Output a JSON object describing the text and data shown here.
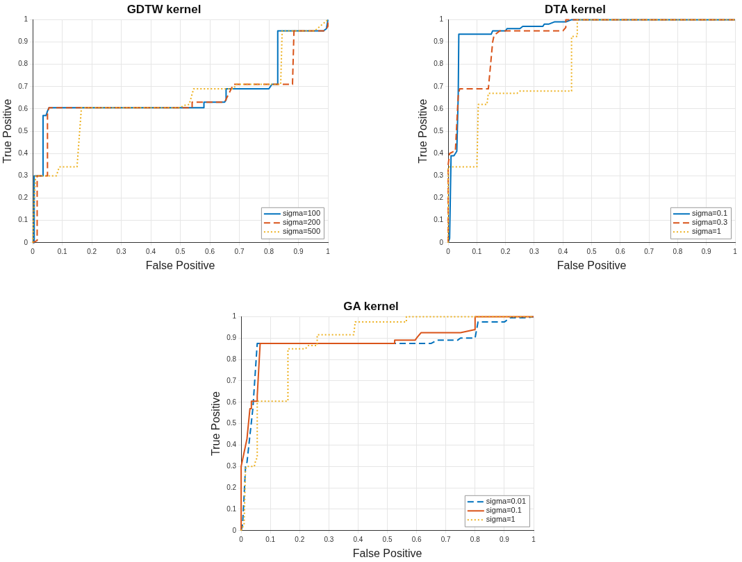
{
  "chart_data": [
    {
      "type": "line",
      "title": "GDTW kernel",
      "xlabel": "False Positive",
      "ylabel": "True Positive",
      "xlim": [
        0,
        1
      ],
      "ylim": [
        0,
        1
      ],
      "xticks": [
        0,
        0.1,
        0.2,
        0.3,
        0.4,
        0.5,
        0.6,
        0.7,
        0.8,
        0.9,
        1
      ],
      "yticks": [
        0,
        0.1,
        0.2,
        0.3,
        0.4,
        0.5,
        0.6,
        0.7,
        0.8,
        0.9,
        1
      ],
      "grid": true,
      "legend": "bottom right",
      "marker": "none",
      "series": [
        {
          "name": "sigma=100",
          "color": "#0072bd",
          "line_style": "solid",
          "x": [
            0,
            0.005,
            0.005,
            0.035,
            0.035,
            0.045,
            0.05,
            0.055,
            0.58,
            0.58,
            0.65,
            0.655,
            0.655,
            0.8,
            0.81,
            0.83,
            0.83,
            0.985,
            0.995,
            1
          ],
          "values": [
            0,
            0,
            0.3,
            0.3,
            0.57,
            0.57,
            0.59,
            0.605,
            0.605,
            0.63,
            0.63,
            0.64,
            0.69,
            0.69,
            0.71,
            0.71,
            0.95,
            0.95,
            0.96,
            1
          ]
        },
        {
          "name": "sigma=200",
          "color": "#d95319",
          "line_style": "dashed",
          "x": [
            0,
            0.015,
            0.015,
            0.05,
            0.05,
            0.055,
            0.54,
            0.54,
            0.65,
            0.68,
            0.88,
            0.885,
            0.99,
            1,
            1
          ],
          "values": [
            0,
            0.01,
            0.3,
            0.3,
            0.58,
            0.605,
            0.605,
            0.63,
            0.63,
            0.71,
            0.71,
            0.95,
            0.95,
            0.97,
            1
          ]
        },
        {
          "name": "sigma=500",
          "color": "#edb120",
          "line_style": "dotted",
          "x": [
            0,
            0.005,
            0.01,
            0.08,
            0.09,
            0.15,
            0.165,
            0.5,
            0.51,
            0.53,
            0.545,
            0.68,
            0.69,
            0.84,
            0.845,
            0.955,
            1
          ],
          "values": [
            0,
            0.2,
            0.3,
            0.3,
            0.34,
            0.34,
            0.605,
            0.605,
            0.615,
            0.62,
            0.69,
            0.69,
            0.71,
            0.71,
            0.95,
            0.95,
            1
          ]
        }
      ]
    },
    {
      "type": "line",
      "title": "DTA kernel",
      "xlabel": "False Positive",
      "ylabel": "True Positive",
      "xlim": [
        0,
        1
      ],
      "ylim": [
        0,
        1
      ],
      "xticks": [
        0,
        0.1,
        0.2,
        0.3,
        0.4,
        0.5,
        0.6,
        0.7,
        0.8,
        0.9,
        1
      ],
      "yticks": [
        0,
        0.1,
        0.2,
        0.3,
        0.4,
        0.5,
        0.6,
        0.7,
        0.8,
        0.9,
        1
      ],
      "grid": true,
      "legend": "bottom right",
      "marker": "none",
      "series": [
        {
          "name": "sigma=0.1",
          "color": "#0072bd",
          "line_style": "solid",
          "x": [
            0,
            0.005,
            0.01,
            0.02,
            0.025,
            0.03,
            0.035,
            0.037,
            0.15,
            0.155,
            0.2,
            0.205,
            0.25,
            0.26,
            0.33,
            0.335,
            0.35,
            0.37,
            0.41,
            0.43,
            1
          ],
          "values": [
            0,
            0.02,
            0.39,
            0.39,
            0.4,
            0.41,
            0.66,
            0.935,
            0.935,
            0.95,
            0.95,
            0.96,
            0.96,
            0.97,
            0.97,
            0.98,
            0.98,
            0.99,
            0.99,
            1,
            1
          ]
        },
        {
          "name": "sigma=0.3",
          "color": "#d95319",
          "line_style": "dashed",
          "x": [
            0,
            0,
            0.005,
            0.02,
            0.025,
            0.035,
            0.04,
            0.14,
            0.155,
            0.16,
            0.18,
            0.4,
            0.41,
            0.41,
            1
          ],
          "values": [
            0,
            0.35,
            0.4,
            0.41,
            0.41,
            0.66,
            0.69,
            0.69,
            0.9,
            0.93,
            0.95,
            0.95,
            0.965,
            1,
            1
          ]
        },
        {
          "name": "sigma=1",
          "color": "#edb120",
          "line_style": "dotted",
          "x": [
            0,
            0,
            0.1,
            0.105,
            0.135,
            0.14,
            0.24,
            0.25,
            0.43,
            0.43,
            0.45,
            0.45,
            1
          ],
          "values": [
            0,
            0.34,
            0.34,
            0.62,
            0.62,
            0.67,
            0.67,
            0.68,
            0.68,
            0.925,
            0.925,
            1,
            1
          ]
        }
      ]
    },
    {
      "type": "line",
      "title": "GA kernel",
      "xlabel": "False Positive",
      "ylabel": "True Positive",
      "xlim": [
        0,
        1
      ],
      "ylim": [
        0,
        1
      ],
      "xticks": [
        0,
        0.1,
        0.2,
        0.3,
        0.4,
        0.5,
        0.6,
        0.7,
        0.8,
        0.9,
        1
      ],
      "yticks": [
        0,
        0.1,
        0.2,
        0.3,
        0.4,
        0.5,
        0.6,
        0.7,
        0.8,
        0.9,
        1
      ],
      "grid": true,
      "legend": "bottom right",
      "marker": "none",
      "series": [
        {
          "name": "sigma=0.01",
          "color": "#0072bd",
          "line_style": "dashed",
          "x": [
            0,
            0.005,
            0.01,
            0.015,
            0.02,
            0.04,
            0.055,
            0.65,
            0.67,
            0.74,
            0.75,
            0.8,
            0.81,
            0.9,
            0.92,
            0.98,
            1
          ],
          "values": [
            0,
            0.03,
            0.16,
            0.3,
            0.32,
            0.57,
            0.875,
            0.875,
            0.89,
            0.89,
            0.9,
            0.9,
            0.975,
            0.975,
            0.995,
            0.995,
            1
          ]
        },
        {
          "name": "sigma=0.1",
          "color": "#d95319",
          "line_style": "solid",
          "x": [
            0,
            0,
            0.02,
            0.03,
            0.035,
            0.035,
            0.055,
            0.055,
            0.065,
            0.525,
            0.525,
            0.595,
            0.6,
            0.615,
            0.75,
            0.8,
            0.8,
            1
          ],
          "values": [
            0,
            0.3,
            0.43,
            0.57,
            0.57,
            0.605,
            0.605,
            0.63,
            0.875,
            0.875,
            0.89,
            0.89,
            0.9,
            0.925,
            0.925,
            0.94,
            1,
            1
          ]
        },
        {
          "name": "sigma=1",
          "color": "#edb120",
          "line_style": "dotted",
          "x": [
            0,
            0.01,
            0.015,
            0.02,
            0.045,
            0.05,
            0.055,
            0.055,
            0.16,
            0.16,
            0.22,
            0.23,
            0.26,
            0.26,
            0.385,
            0.39,
            0.565,
            0.565,
            1
          ],
          "values": [
            0,
            0.03,
            0.29,
            0.3,
            0.3,
            0.33,
            0.34,
            0.605,
            0.605,
            0.85,
            0.85,
            0.865,
            0.865,
            0.915,
            0.915,
            0.975,
            0.975,
            1,
            1
          ]
        }
      ]
    }
  ]
}
